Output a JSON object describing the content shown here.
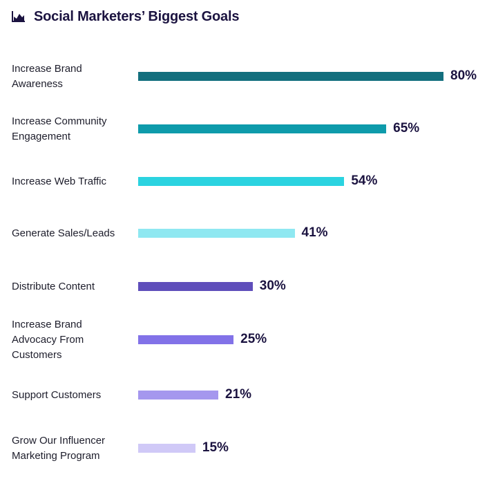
{
  "header": {
    "title": "Social Marketers’ Biggest Goals",
    "icon": "area-chart-icon"
  },
  "chart_data": {
    "type": "bar",
    "orientation": "horizontal",
    "title": "Social Marketers’ Biggest Goals",
    "categories": [
      "Increase Brand Awareness",
      "Increase Community Engagement",
      "Increase Web Traffic",
      "Generate Sales/Leads",
      "Distribute Content",
      "Increase Brand Advocacy From Customers",
      "Support Customers",
      "Grow Our Influencer Marketing Program"
    ],
    "category_display": [
      "Increase Brand\nAwareness",
      "Increase Community\nEngagement",
      "Increase Web Traffic",
      "Generate Sales/Leads",
      "Distribute Content",
      "Increase Brand\nAdvocacy From\nCustomers",
      "Support Customers",
      "Grow Our Influencer\nMarketing Program"
    ],
    "values": [
      80,
      65,
      54,
      41,
      30,
      25,
      21,
      15
    ],
    "value_labels": [
      "80%",
      "65%",
      "54%",
      "41%",
      "30%",
      "25%",
      "21%",
      "15%"
    ],
    "colors": [
      "#136f7e",
      "#0e9bab",
      "#2bd3e0",
      "#8fe8f1",
      "#5f4ebb",
      "#8272e8",
      "#a597ee",
      "#d0c9f7"
    ],
    "xlim": [
      0,
      80
    ],
    "grid": false,
    "legend": "none"
  }
}
